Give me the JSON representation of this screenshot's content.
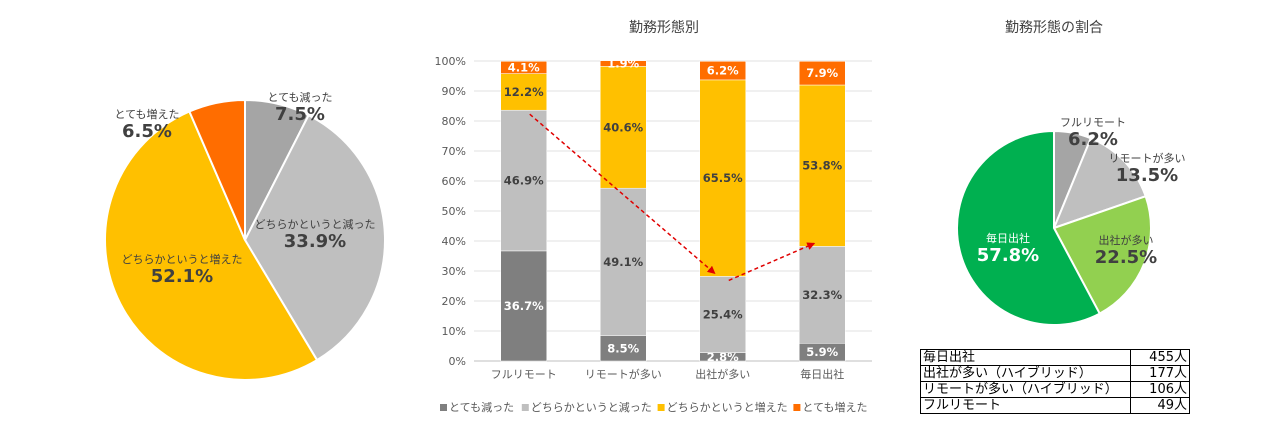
{
  "chart_data": [
    {
      "type": "pie",
      "title": "",
      "slices": [
        {
          "label": "とても減った",
          "value": 7.5,
          "value_label": "7.5%",
          "color": "#a5a5a5"
        },
        {
          "label": "どちらかというと減った",
          "value": 33.9,
          "value_label": "33.9%",
          "color": "#bfbfbf"
        },
        {
          "label": "どちらかというと増えた",
          "value": 52.1,
          "value_label": "52.1%",
          "color": "#ffc000"
        },
        {
          "label": "とても増えた",
          "value": 6.5,
          "value_label": "6.5%",
          "color": "#ff6d00"
        }
      ]
    },
    {
      "type": "bar",
      "stacked": true,
      "title": "勤務形態別",
      "categories": [
        "フルリモート",
        "リモートが多い",
        "出社が多い",
        "毎日出社"
      ],
      "ylim": [
        0,
        100
      ],
      "yticks": [
        "0%",
        "10%",
        "20%",
        "30%",
        "40%",
        "50%",
        "60%",
        "70%",
        "80%",
        "90%",
        "100%"
      ],
      "grid": true,
      "legend_position": "bottom",
      "series": [
        {
          "name": "とても減った",
          "color": "#7f7f7f",
          "values": [
            36.7,
            8.5,
            2.8,
            5.9
          ],
          "labels": [
            "36.7%",
            "8.5%",
            "2.8%",
            "5.9%"
          ]
        },
        {
          "name": "どちらかというと減った",
          "color": "#bfbfbf",
          "values": [
            46.9,
            49.1,
            25.4,
            32.3
          ],
          "labels": [
            "46.9%",
            "49.1%",
            "25.4%",
            "32.3%"
          ]
        },
        {
          "name": "どちらかというと増えた",
          "color": "#ffc000",
          "values": [
            12.2,
            40.6,
            65.5,
            53.8
          ],
          "labels": [
            "12.2%",
            "40.6%",
            "65.5%",
            "53.8%"
          ]
        },
        {
          "name": "とても増えた",
          "color": "#ff6d00",
          "values": [
            4.1,
            1.9,
            6.2,
            7.9
          ],
          "labels": [
            "4.1%",
            "1.9%",
            "6.2%",
            "7.9%"
          ]
        }
      ]
    },
    {
      "type": "pie",
      "title": "勤務形態の割合",
      "slices": [
        {
          "label": "フルリモート",
          "value": 6.2,
          "value_label": "6.2%",
          "color": "#a5a5a5"
        },
        {
          "label": "リモートが多い",
          "value": 13.5,
          "value_label": "13.5%",
          "color": "#bfbfbf"
        },
        {
          "label": "出社が多い",
          "value": 22.5,
          "value_label": "22.5%",
          "color": "#92d050"
        },
        {
          "label": "毎日出社",
          "value": 57.8,
          "value_label": "57.8%",
          "color": "#00b050"
        }
      ]
    }
  ],
  "table": {
    "rows": [
      {
        "label": "毎日出社",
        "count": "455人"
      },
      {
        "label": "出社が多い（ハイブリッド）",
        "count": "177人"
      },
      {
        "label": "リモートが多い（ハイブリッド）",
        "count": "106人"
      },
      {
        "label": "フルリモート",
        "count": "49人"
      }
    ]
  }
}
